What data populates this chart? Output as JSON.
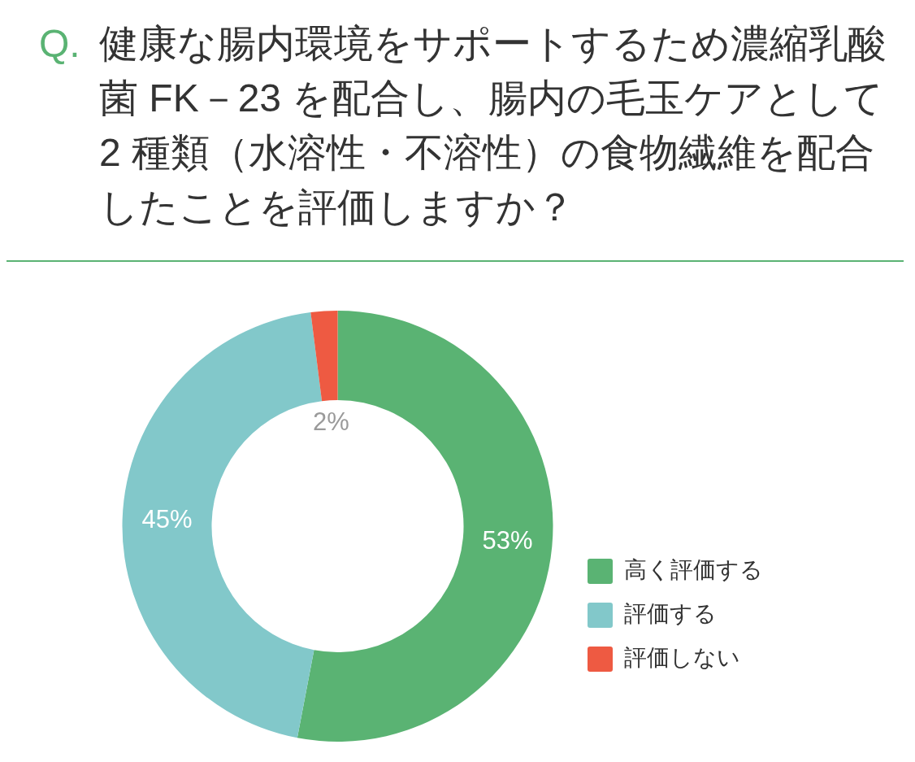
{
  "chart_data": {
    "type": "donut",
    "title": "健康な腸内環境をサポートするため濃縮乳酸菌 FK－23 を配合し、腸内の毛玉ケアとして 2 種類（水溶性・不溶性）の食物繊維を配合したことを評価しますか？",
    "annotations": [
      "Q."
    ],
    "categories": [
      "高く評価する",
      "評価する",
      "評価しない"
    ],
    "values": [
      53,
      45,
      2
    ],
    "colors": [
      "#5ab373",
      "#82c8ca",
      "#ee5a42"
    ],
    "value_labels": [
      "53%",
      "45%",
      "2%"
    ],
    "legend": "right"
  }
}
